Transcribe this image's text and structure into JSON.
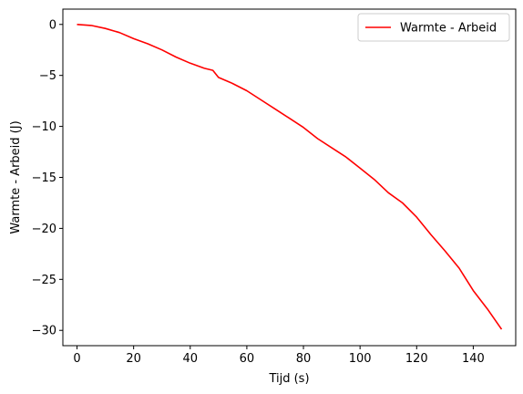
{
  "chart_data": {
    "type": "line",
    "xlabel": "Tijd (s)",
    "ylabel": "Warmte - Arbeid   (J)",
    "xlim": [
      -5,
      155
    ],
    "ylim": [
      -31.5,
      1.5
    ],
    "xticks": [
      0,
      20,
      40,
      60,
      80,
      100,
      120,
      140
    ],
    "yticks": [
      0,
      -5,
      -10,
      -15,
      -20,
      -25,
      -30
    ],
    "ytick_labels": [
      "0",
      "−5",
      "−10",
      "−15",
      "−20",
      "−25",
      "−30"
    ],
    "grid": false,
    "legend": "top-right",
    "series": [
      {
        "name": "Warmte - Arbeid",
        "color": "#ff0000",
        "x": [
          0,
          5,
          10,
          15,
          20,
          25,
          30,
          35,
          40,
          45,
          48,
          50,
          55,
          60,
          65,
          70,
          75,
          80,
          85,
          90,
          95,
          100,
          105,
          110,
          115,
          120,
          125,
          130,
          135,
          140,
          145,
          150
        ],
        "y": [
          0,
          -0.1,
          -0.4,
          -0.8,
          -1.4,
          -1.9,
          -2.5,
          -3.2,
          -3.8,
          -4.3,
          -4.5,
          -5.2,
          -5.8,
          -6.5,
          -7.4,
          -8.3,
          -9.2,
          -10.1,
          -11.2,
          -12.1,
          -13.0,
          -14.1,
          -15.2,
          -16.5,
          -17.5,
          -18.9,
          -20.6,
          -22.2,
          -23.9,
          -26.1,
          -27.9,
          -29.9
        ]
      }
    ]
  }
}
